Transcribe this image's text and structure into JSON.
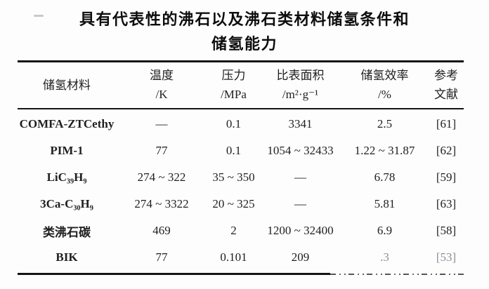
{
  "title": {
    "line1": "具有代表性的沸石以及沸石类材料储氢条件和",
    "line2": "储氢能力"
  },
  "table": {
    "headers": [
      {
        "line1": "储氢材料",
        "line2": ""
      },
      {
        "line1": "温度",
        "line2": "/K"
      },
      {
        "line1": "压力",
        "line2": "/MPa"
      },
      {
        "line1": "比表面积",
        "line2": "/m²·g⁻¹"
      },
      {
        "line1": "储氢效率",
        "line2": "/%"
      },
      {
        "line1": "参考",
        "line2": "文献"
      }
    ],
    "rows": [
      {
        "material": "COMFA-ZTCethy",
        "temperature": "—",
        "pressure": "0.1",
        "surface_area": "3341",
        "efficiency": "2.5",
        "reference": "[61]"
      },
      {
        "material": "PIM-1",
        "temperature": "77",
        "pressure": "0.1",
        "surface_area": "1054 ~ 32433",
        "efficiency": "1.22 ~ 31.87",
        "reference": "[62]"
      },
      {
        "material": "LiC₃₉H₉",
        "temperature": "274 ~ 322",
        "pressure": "35 ~ 350",
        "surface_area": "—",
        "efficiency": "6.78",
        "reference": "[59]"
      },
      {
        "material": "3Ca-C₃₀H₉",
        "temperature": "274 ~ 3322",
        "pressure": "20 ~ 325",
        "surface_area": "—",
        "efficiency": "5.81",
        "reference": "[63]"
      },
      {
        "material": "类沸石碳",
        "temperature": "469",
        "pressure": "2",
        "surface_area": "1200 ~ 32400",
        "efficiency": "6.9",
        "reference": "[58]"
      },
      {
        "material": "BIK",
        "temperature": "77",
        "pressure": "0.101",
        "surface_area": "209",
        "efficiency": ".3",
        "reference": "[53]"
      }
    ]
  },
  "colors": {
    "text": "#1f1f1f",
    "rule": "#151515",
    "faded_text": "#8d8d99"
  }
}
